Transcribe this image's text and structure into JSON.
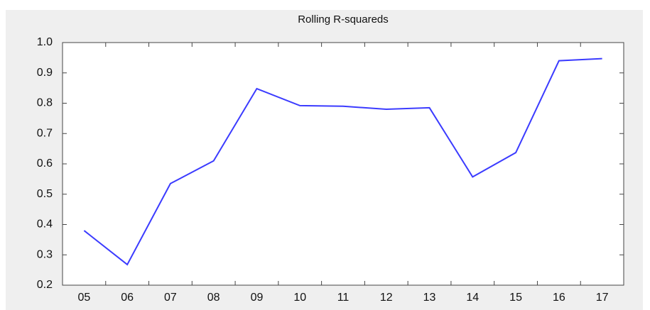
{
  "chart_data": {
    "type": "line",
    "title": "Rolling R-squareds",
    "categories": [
      "05",
      "06",
      "07",
      "08",
      "09",
      "10",
      "11",
      "12",
      "13",
      "14",
      "15",
      "16",
      "17"
    ],
    "series": [
      {
        "color": "#3b3bff",
        "values": [
          0.38,
          0.268,
          0.535,
          0.61,
          0.848,
          0.792,
          0.79,
          0.78,
          0.785,
          0.557,
          0.637,
          0.94,
          0.947
        ]
      }
    ],
    "ylim": [
      0.2,
      1.0
    ],
    "yticks": [
      {
        "value": 0.2,
        "label": "0.2"
      },
      {
        "value": 0.3,
        "label": "0.3"
      },
      {
        "value": 0.4,
        "label": "0.4"
      },
      {
        "value": 0.5,
        "label": "0.5"
      },
      {
        "value": 0.6,
        "label": "0.6"
      },
      {
        "value": 0.7,
        "label": "0.7"
      },
      {
        "value": 0.8,
        "label": "0.8"
      },
      {
        "value": 0.9,
        "label": "0.9"
      },
      {
        "value": 1.0,
        "label": "1.0"
      }
    ]
  }
}
